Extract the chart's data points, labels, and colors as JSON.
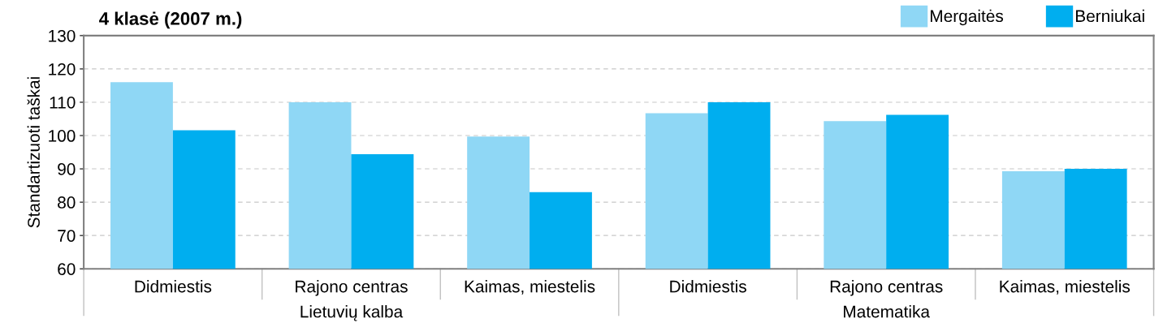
{
  "chart_data": {
    "type": "bar",
    "title": "4 klasė (2007 m.)",
    "ylabel": "Standartizuoti taškai",
    "categories": [
      "Didmiestis",
      "Rajono centras",
      "Kaimas, miestelis",
      "Didmiestis",
      "Rajono centras",
      "Kaimas, miestelis"
    ],
    "series": [
      {
        "name": "Mergaitės",
        "color": "#8fd7f5",
        "values": [
          116,
          110,
          99.7,
          106.7,
          104.3,
          89.3
        ]
      },
      {
        "name": "Berniukai",
        "color": "#00aeef",
        "values": [
          101.6,
          94.4,
          83,
          110,
          106.2,
          90
        ]
      }
    ],
    "annotations": [
      "Lietuvių kalba",
      "Matematika"
    ],
    "ylim": [
      60,
      130
    ],
    "yticks": [
      60,
      70,
      80,
      90,
      100,
      110,
      120,
      130
    ],
    "grid": "y",
    "legend": "top right"
  }
}
